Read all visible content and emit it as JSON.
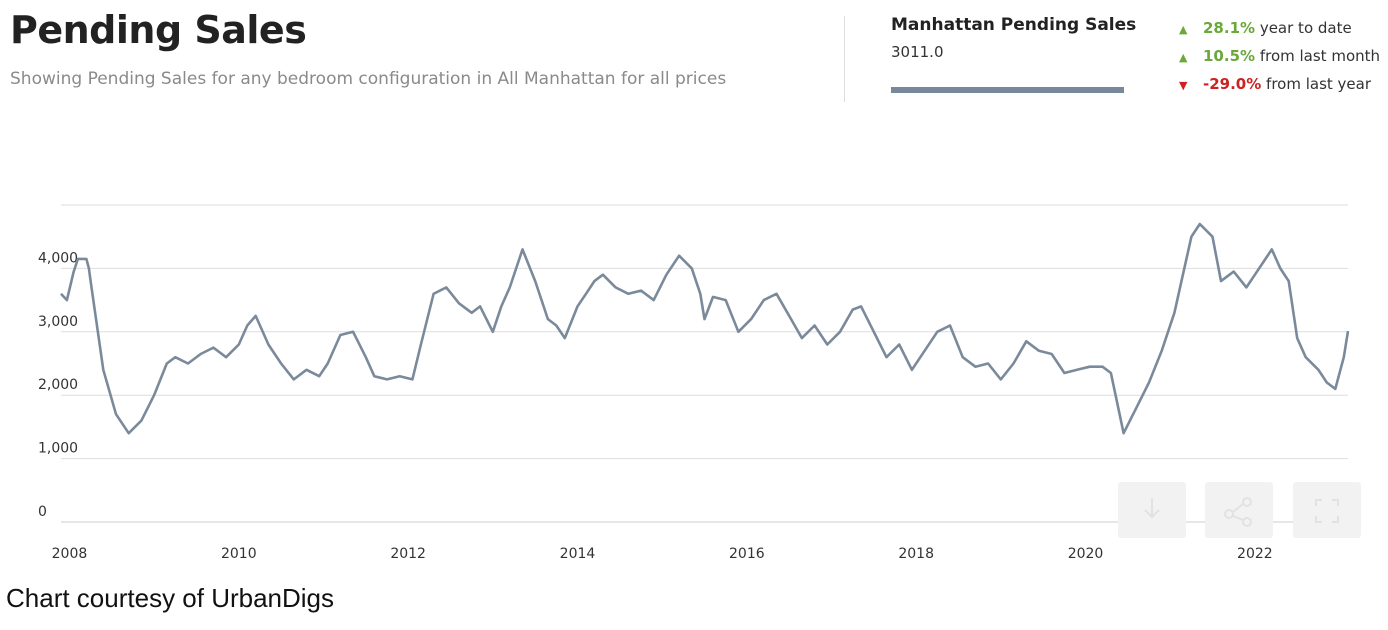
{
  "header": {
    "title": "Pending Sales",
    "subtitle": "Showing Pending Sales for any bedroom configuration in All Manhattan for all prices"
  },
  "summary": {
    "title": "Manhattan Pending Sales",
    "value": "3011.0",
    "stats": [
      {
        "pct": "28.1%",
        "label": "year to date",
        "direction": "up"
      },
      {
        "pct": "10.5%",
        "label": "from last month",
        "direction": "up"
      },
      {
        "pct": "-29.0%",
        "label": "from last year",
        "direction": "down"
      }
    ]
  },
  "colors": {
    "series": "#7b8a9a",
    "up": "#6aa83a",
    "down": "#cc2222",
    "summary_bar": "#778899"
  },
  "icons": [
    "download-icon",
    "share-icon",
    "expand-icon"
  ],
  "credit": "Chart courtesy of UrbanDigs",
  "chart_data": {
    "type": "line",
    "title": "Pending Sales",
    "xlabel": "",
    "ylabel": "",
    "xlim": [
      2007.9,
      2023.1
    ],
    "ylim": [
      0,
      5000
    ],
    "yticks": [
      0,
      1000,
      2000,
      3000,
      4000
    ],
    "ytick_labels": [
      "0",
      "1,000",
      "2,000",
      "3,000",
      "4,000"
    ],
    "xticks": [
      2008,
      2010,
      2012,
      2014,
      2016,
      2018,
      2020,
      2022
    ],
    "xtick_labels": [
      "2008",
      "2010",
      "2012",
      "2014",
      "2016",
      "2018",
      "2020",
      "2022"
    ],
    "grid": true,
    "legend": "none",
    "series": [
      {
        "x": [
          2007.9,
          2007.97,
          2008.05,
          2008.1,
          2008.2,
          2008.23,
          2008.25,
          2008.4,
          2008.55,
          2008.7,
          2008.85,
          2009.0,
          2009.15,
          2009.25,
          2009.4,
          2009.55,
          2009.7,
          2009.85,
          2010.0,
          2010.1,
          2010.2,
          2010.35,
          2010.5,
          2010.65,
          2010.8,
          2010.95,
          2011.05,
          2011.2,
          2011.35,
          2011.5,
          2011.6,
          2011.75,
          2011.9,
          2012.05,
          2012.15,
          2012.3,
          2012.45,
          2012.6,
          2012.75,
          2012.85,
          2013.0,
          2013.1,
          2013.2,
          2013.35,
          2013.5,
          2013.65,
          2013.75,
          2013.85,
          2014.0,
          2014.1,
          2014.2,
          2014.3,
          2014.45,
          2014.6,
          2014.75,
          2014.9,
          2015.05,
          2015.2,
          2015.35,
          2015.45,
          2015.5,
          2015.6,
          2015.75,
          2015.9,
          2016.05,
          2016.2,
          2016.35,
          2016.5,
          2016.65,
          2016.8,
          2016.95,
          2017.1,
          2017.25,
          2017.35,
          2017.5,
          2017.65,
          2017.8,
          2017.95,
          2018.1,
          2018.25,
          2018.4,
          2018.55,
          2018.7,
          2018.85,
          2019.0,
          2019.15,
          2019.3,
          2019.45,
          2019.6,
          2019.75,
          2019.9,
          2020.05,
          2020.2,
          2020.3,
          2020.45,
          2020.6,
          2020.75,
          2020.9,
          2021.05,
          2021.15,
          2021.25,
          2021.35,
          2021.5,
          2021.6,
          2021.75,
          2021.9,
          2022.0,
          2022.1,
          2022.2,
          2022.3,
          2022.4,
          2022.5,
          2022.6,
          2022.75,
          2022.85,
          2022.95,
          2023.05,
          2023.1
        ],
        "y": [
          3600,
          3500,
          3950,
          4150,
          4150,
          4000,
          3800,
          2400,
          1700,
          1400,
          1600,
          2000,
          2500,
          2600,
          2500,
          2650,
          2750,
          2600,
          2800,
          3100,
          3250,
          2800,
          2500,
          2250,
          2400,
          2300,
          2500,
          2950,
          3000,
          2600,
          2300,
          2250,
          2300,
          2250,
          2800,
          3600,
          3700,
          3450,
          3300,
          3400,
          3000,
          3400,
          3700,
          4300,
          3800,
          3200,
          3100,
          2900,
          3400,
          3600,
          3800,
          3900,
          3700,
          3600,
          3650,
          3500,
          3900,
          4200,
          4000,
          3600,
          3200,
          3550,
          3500,
          3000,
          3200,
          3500,
          3600,
          3250,
          2900,
          3100,
          2800,
          3000,
          3350,
          3400,
          3000,
          2600,
          2800,
          2400,
          2700,
          3000,
          3100,
          2600,
          2450,
          2500,
          2250,
          2500,
          2850,
          2700,
          2650,
          2350,
          2400,
          2450,
          2450,
          2350,
          1400,
          1800,
          2200,
          2700,
          3300,
          3900,
          4500,
          4700,
          4500,
          3800,
          3950,
          3700,
          3900,
          4100,
          4300,
          4000,
          3800,
          2900,
          2600,
          2400,
          2200,
          2100,
          2600,
          3011
        ]
      }
    ]
  }
}
